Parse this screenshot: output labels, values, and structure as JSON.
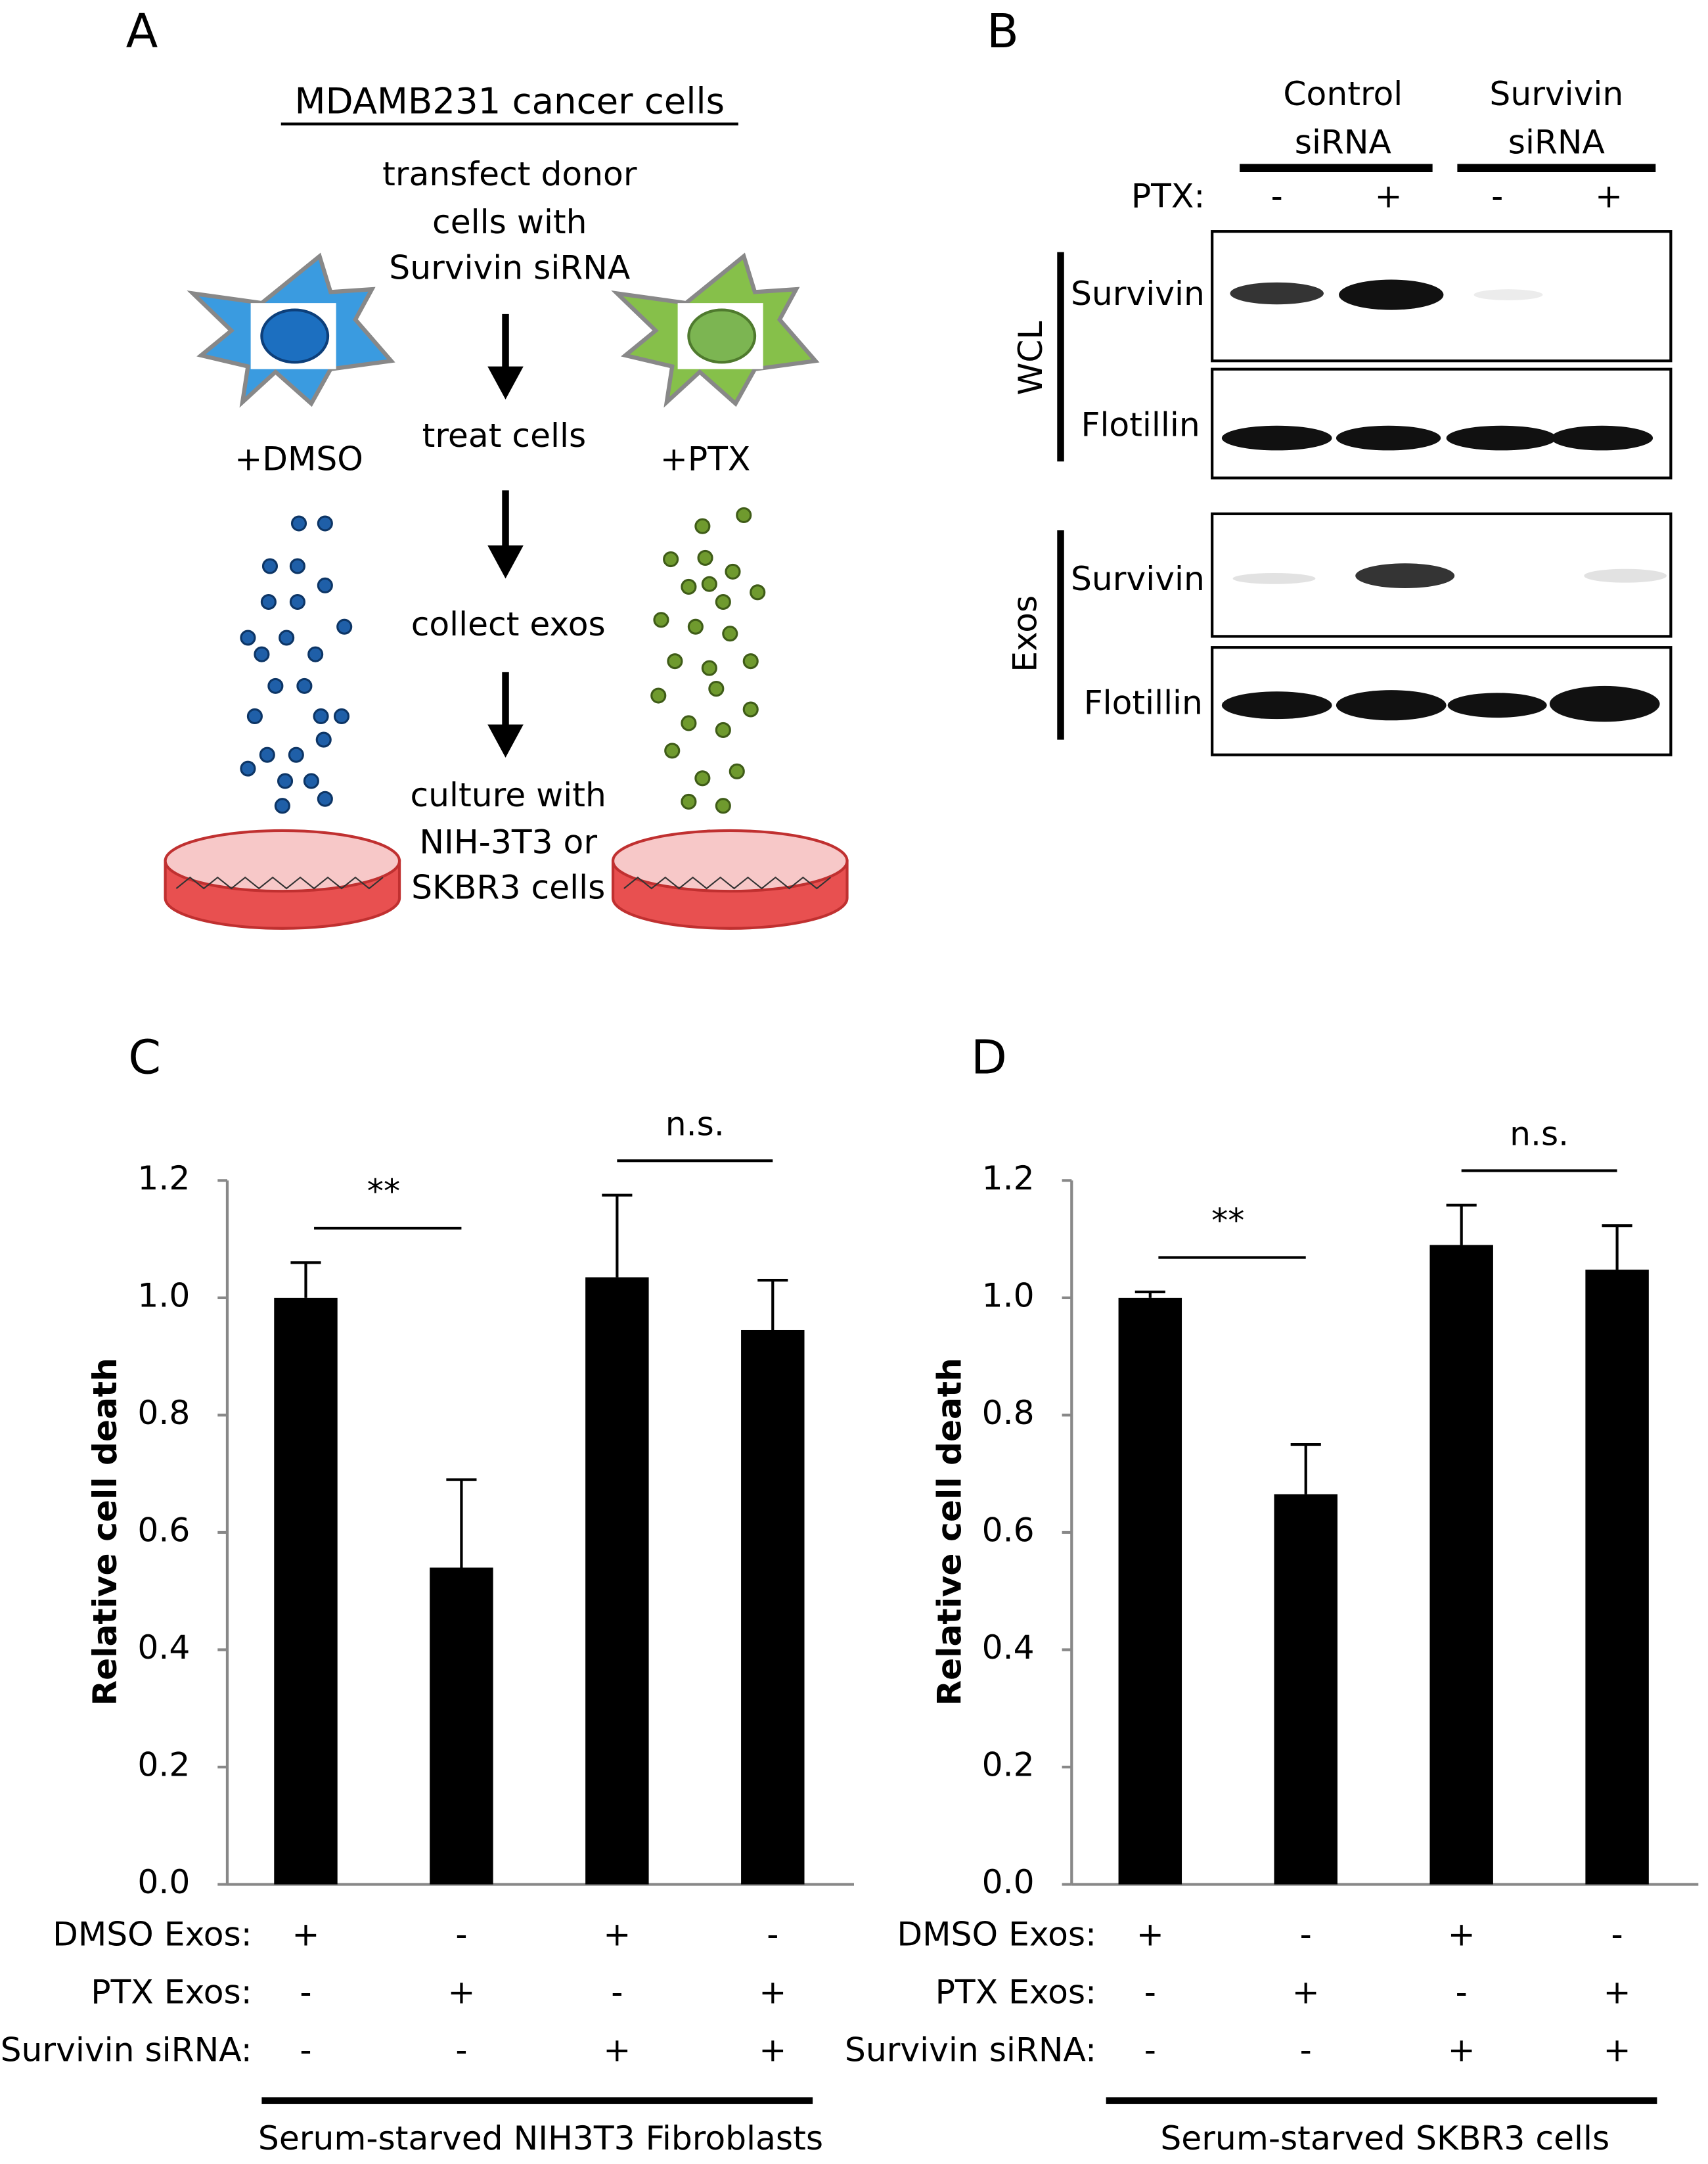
{
  "panel_a": {
    "label": "A",
    "title": "MDAMB231 cancer cells",
    "steps": [
      "transfect donor",
      "cells with",
      "Survivin siRNA",
      "treat cells",
      "collect exos",
      "culture with",
      "NIH-3T3 or",
      "SKBR3 cells"
    ],
    "left_treatment": "+DMSO",
    "right_treatment": "+PTX"
  },
  "panel_b": {
    "label": "B",
    "groups": [
      {
        "lines": [
          "Control",
          "siRNA"
        ]
      },
      {
        "lines": [
          "Survivin",
          "siRNA"
        ]
      }
    ],
    "ptx_label": "PTX:",
    "ptx_signs": [
      "-",
      "+",
      "-",
      "+"
    ],
    "sections": [
      {
        "name": "WCL",
        "rows": [
          "Survivin",
          "Flotillin"
        ]
      },
      {
        "name": "Exos",
        "rows": [
          "Survivin",
          "Flotillin"
        ]
      }
    ]
  },
  "chart_data": [
    {
      "type": "bar",
      "panel_label": "C",
      "ylabel": "Relative cell death",
      "categories": [
        null,
        null,
        null,
        null
      ],
      "values": [
        1.0,
        0.54,
        1.035,
        0.945
      ],
      "errors": [
        0.06,
        0.15,
        0.14,
        0.085
      ],
      "color": "#000000",
      "ylim": [
        0,
        1.2
      ],
      "yticks": [
        {
          "value": 0,
          "label": "0.0"
        },
        {
          "value": 0.2,
          "label": "0.2"
        },
        {
          "value": 0.4,
          "label": "0.4"
        },
        {
          "value": 0.6,
          "label": "0.6"
        },
        {
          "value": 0.8,
          "label": "0.8"
        },
        {
          "value": 1,
          "label": "1.0"
        },
        {
          "value": 1.2,
          "label": "1.2"
        }
      ],
      "annotations": [
        "**",
        "n.s."
      ],
      "conditions": [
        {
          "label": "DMSO Exos:",
          "signs": [
            "+",
            "-",
            "+",
            "-"
          ]
        },
        {
          "label": "PTX Exos:",
          "signs": [
            "-",
            "+",
            "-",
            "+"
          ]
        },
        {
          "label": "Survivin siRNA:",
          "signs": [
            "-",
            "-",
            "+",
            "+"
          ]
        }
      ],
      "footer": "Serum-starved NIH3T3 Fibroblasts"
    },
    {
      "type": "bar",
      "panel_label": "D",
      "ylabel": "Relative cell death",
      "categories": [
        null,
        null,
        null,
        null
      ],
      "values": [
        1.0,
        0.665,
        1.09,
        1.048
      ],
      "errors": [
        0.01,
        0.085,
        0.068,
        0.075
      ],
      "color": "#000000",
      "ylim": [
        0,
        1.2
      ],
      "yticks": [
        {
          "value": 0,
          "label": "0.0"
        },
        {
          "value": 0.2,
          "label": "0.2"
        },
        {
          "value": 0.4,
          "label": "0.4"
        },
        {
          "value": 0.6,
          "label": "0.6"
        },
        {
          "value": 0.8,
          "label": "0.8"
        },
        {
          "value": 1,
          "label": "1.0"
        },
        {
          "value": 1.2,
          "label": "1.2"
        }
      ],
      "annotations": [
        "**",
        "n.s."
      ],
      "conditions": [
        {
          "label": "DMSO Exos:",
          "signs": [
            "+",
            "-",
            "+",
            "-"
          ]
        },
        {
          "label": "PTX Exos:",
          "signs": [
            "-",
            "+",
            "-",
            "+"
          ]
        },
        {
          "label": "Survivin siRNA:",
          "signs": [
            "-",
            "-",
            "+",
            "+"
          ]
        }
      ],
      "footer": "Serum-starved SKBR3 cells"
    }
  ]
}
